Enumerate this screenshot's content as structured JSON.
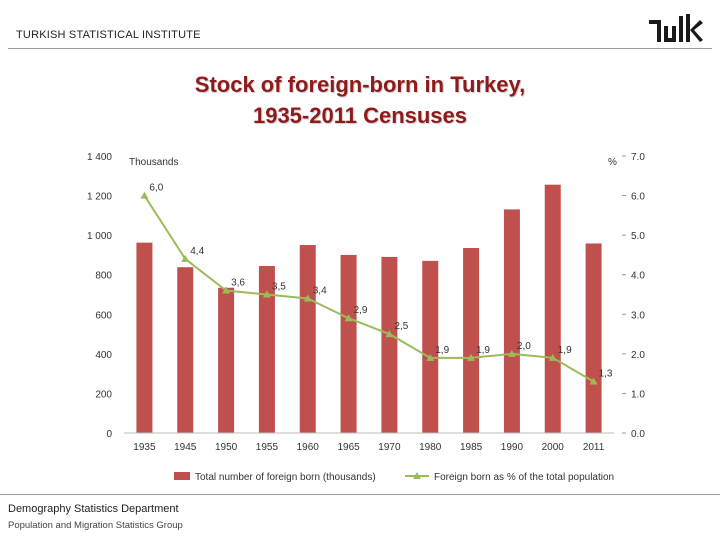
{
  "header": {
    "institute": "TURKISH STATISTICAL INSTITUTE",
    "logo_text": "TUIK"
  },
  "title": {
    "line1": "Stock of foreign-born in Turkey,",
    "line2": "1935-2011 Censuses"
  },
  "footer": {
    "department": "Demography Statistics Department",
    "group": "Population and Migration Statistics Group"
  },
  "colors": {
    "bar": "#c0504d",
    "line": "#9bbb59",
    "title": "#8e1b1b"
  },
  "chart_data": {
    "type": "bar",
    "categories": [
      "1935",
      "1945",
      "1950",
      "1955",
      "1960",
      "1965",
      "1970",
      "1980",
      "1985",
      "1990",
      "2000",
      "2011"
    ],
    "series": [
      {
        "name": "Total number of foreign born (thousands)",
        "type": "bar",
        "axis": "left",
        "values": [
          962,
          838,
          734,
          844,
          950,
          900,
          890,
          870,
          935,
          1130,
          1255,
          958
        ]
      },
      {
        "name": "Foreign born as % of the total population",
        "type": "line",
        "axis": "right",
        "values": [
          6.0,
          4.4,
          3.6,
          3.5,
          3.4,
          2.9,
          2.5,
          1.9,
          1.9,
          2.0,
          1.9,
          1.3
        ],
        "labels": [
          "6,0",
          "4,4",
          "3,6",
          "3,5",
          "3,4",
          "2,9",
          "2,5",
          "1,9",
          "1,9",
          "2,0",
          "1,9",
          "1,3"
        ]
      }
    ],
    "ylabel_left": "Thousands",
    "ylabel_right": "%",
    "ylim_left": [
      0,
      1400
    ],
    "ylim_right": [
      0,
      7
    ],
    "yticks_left": [
      "0",
      "200",
      "400",
      "600",
      "800",
      "1 000",
      "1 200",
      "1 400"
    ],
    "yticks_right": [
      "0.0",
      "1.0",
      "2.0",
      "3.0",
      "4.0",
      "5.0",
      "6.0",
      "7.0"
    ],
    "grid": false,
    "legend_position": "bottom"
  }
}
